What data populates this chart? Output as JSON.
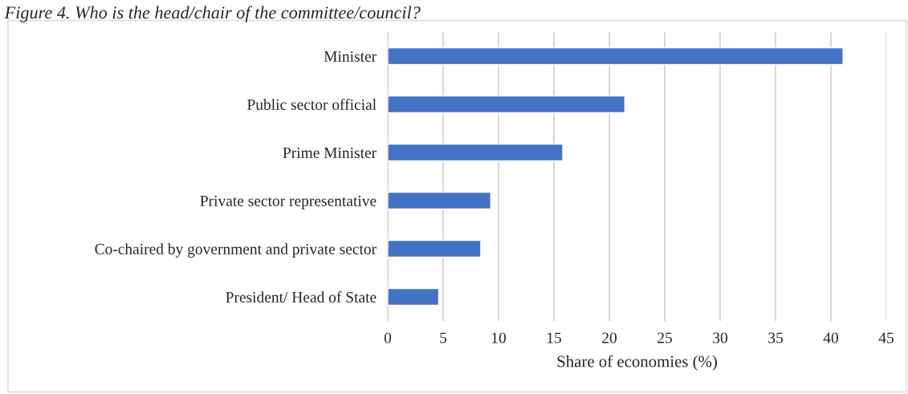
{
  "chart_data": {
    "type": "bar",
    "orientation": "horizontal",
    "title": "Figure 4. Who is the head/chair of the committee/council?",
    "xlabel": "Share of economies (%)",
    "categories": [
      "Minister",
      "Public sector official",
      "Prime Minister",
      "Private sector representative",
      "Co-chaired by government and private sector",
      "President/ Head of State"
    ],
    "values": [
      41.1,
      21.4,
      15.8,
      9.3,
      8.4,
      4.6
    ],
    "color": "#4472c4",
    "xlim": [
      0,
      45
    ],
    "xticks": [
      0,
      5,
      10,
      15,
      20,
      25,
      30,
      35,
      40,
      45
    ],
    "grid": "x",
    "legend": false
  }
}
